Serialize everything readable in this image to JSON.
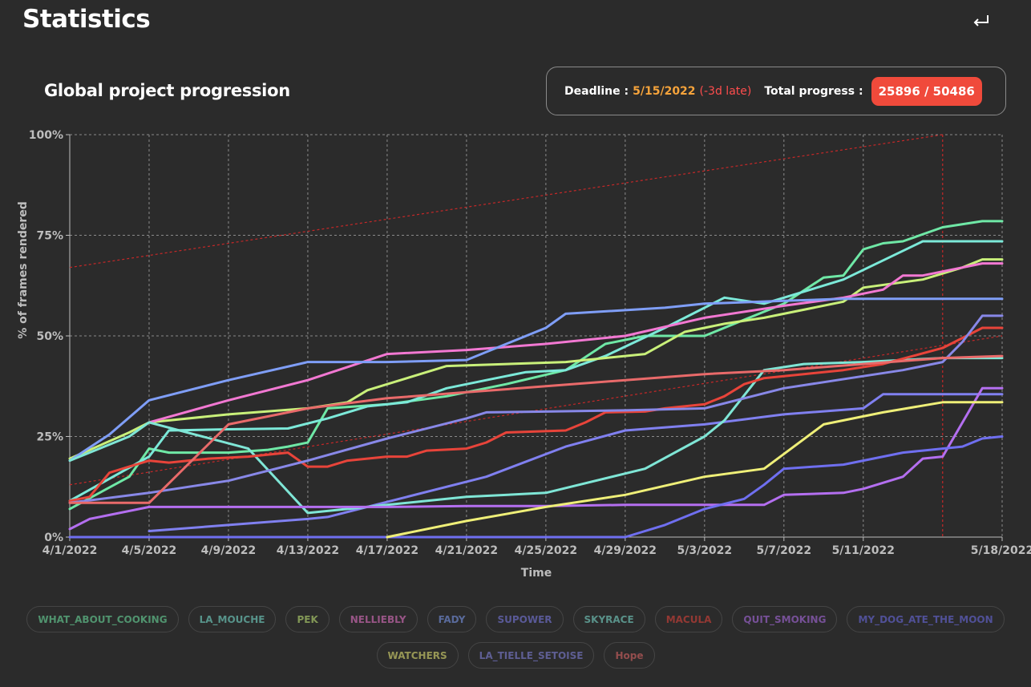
{
  "page": {
    "title": "Statistics",
    "back_icon": "return-arrow-icon"
  },
  "section": {
    "title": "Global project progression",
    "deadline_label": "Deadline :",
    "deadline_date": "5/15/2022",
    "deadline_late": "(-3d late)",
    "total_label": "Total progress :",
    "total_value": "25896 / 50486"
  },
  "colors": {
    "deadline": "#f5a33b",
    "late": "#ff4d4d",
    "badge": "#f04a3b",
    "background": "#2b2b2b"
  },
  "chart_data": {
    "type": "line",
    "xlabel": "Time",
    "ylabel": "% of frames rendered",
    "ylim": [
      0,
      100
    ],
    "yticks": [
      0,
      25,
      50,
      75,
      100
    ],
    "ytick_labels": [
      "0%",
      "25%",
      "50%",
      "75%",
      "100%"
    ],
    "xlim": [
      "2022-04-01",
      "2022-05-18"
    ],
    "xticks": [
      "2022-04-01",
      "2022-04-05",
      "2022-04-09",
      "2022-04-13",
      "2022-04-17",
      "2022-04-21",
      "2022-04-25",
      "2022-04-29",
      "2022-05-03",
      "2022-05-07",
      "2022-05-11",
      "2022-05-18"
    ],
    "xtick_labels": [
      "4/1/2022",
      "4/5/2022",
      "4/9/2022",
      "4/13/2022",
      "4/17/2022",
      "4/21/2022",
      "4/25/2022",
      "4/29/2022",
      "5/3/2022",
      "5/7/2022",
      "5/11/2022",
      "5/18/2022"
    ],
    "grid": true,
    "deadline_line_x": "2022-05-15",
    "reference_lines": [
      {
        "color": "#c62828",
        "points": [
          [
            "2022-04-01",
            67
          ],
          [
            "2022-05-15",
            100
          ]
        ]
      },
      {
        "color": "#c62828",
        "points": [
          [
            "2022-04-01",
            13
          ],
          [
            "2022-05-18",
            50
          ]
        ]
      }
    ],
    "series": [
      {
        "name": "WHAT_ABOUT_COOKING",
        "color": "#6fe8a6",
        "points": [
          [
            "2022-04-01",
            7
          ],
          [
            "2022-04-04",
            15
          ],
          [
            "2022-04-05",
            22
          ],
          [
            "2022-04-06",
            21
          ],
          [
            "2022-04-09",
            21
          ],
          [
            "2022-04-11",
            21.7
          ],
          [
            "2022-04-12",
            22.5
          ],
          [
            "2022-04-13",
            23.5
          ],
          [
            "2022-04-14",
            32
          ],
          [
            "2022-04-17",
            33
          ],
          [
            "2022-04-20",
            35
          ],
          [
            "2022-04-23",
            38
          ],
          [
            "2022-04-26",
            41.5
          ],
          [
            "2022-04-28",
            48
          ],
          [
            "2022-04-30",
            50
          ],
          [
            "2022-05-03",
            50
          ],
          [
            "2022-05-05",
            54
          ],
          [
            "2022-05-07",
            58
          ],
          [
            "2022-05-09",
            64.5
          ],
          [
            "2022-05-10",
            65
          ],
          [
            "2022-05-11",
            71.5
          ],
          [
            "2022-05-12",
            73
          ],
          [
            "2022-05-13",
            73.5
          ],
          [
            "2022-05-15",
            77
          ],
          [
            "2022-05-17",
            78.5
          ],
          [
            "2022-05-18",
            78.5
          ]
        ]
      },
      {
        "name": "LA_MOUCHE",
        "color": "#7ce9d9",
        "points": [
          [
            "2022-04-01",
            9
          ],
          [
            "2022-04-05",
            20
          ],
          [
            "2022-04-06",
            26.5
          ],
          [
            "2022-04-09",
            26.8
          ],
          [
            "2022-04-12",
            27
          ],
          [
            "2022-04-14",
            29.5
          ],
          [
            "2022-04-16",
            32.5
          ],
          [
            "2022-04-18",
            33.5
          ],
          [
            "2022-04-20",
            37
          ],
          [
            "2022-04-22",
            39
          ],
          [
            "2022-04-24",
            41
          ],
          [
            "2022-04-26",
            41.5
          ],
          [
            "2022-04-28",
            45
          ],
          [
            "2022-05-01",
            52
          ],
          [
            "2022-05-04",
            59.5
          ],
          [
            "2022-05-06",
            58
          ],
          [
            "2022-05-08",
            61
          ],
          [
            "2022-05-10",
            64
          ],
          [
            "2022-05-14",
            73.5
          ],
          [
            "2022-05-18",
            73.5
          ]
        ]
      },
      {
        "name": "PEK",
        "color": "#c9f07a",
        "points": [
          [
            "2022-04-01",
            19.5
          ],
          [
            "2022-04-04",
            26
          ],
          [
            "2022-04-05",
            28.5
          ],
          [
            "2022-04-09",
            30.5
          ],
          [
            "2022-04-13",
            32
          ],
          [
            "2022-04-15",
            33.5
          ],
          [
            "2022-04-16",
            36.5
          ],
          [
            "2022-04-18",
            39.5
          ],
          [
            "2022-04-20",
            42.5
          ],
          [
            "2022-04-26",
            43.5
          ],
          [
            "2022-04-30",
            45.5
          ],
          [
            "2022-05-02",
            51
          ],
          [
            "2022-05-04",
            53
          ],
          [
            "2022-05-06",
            54.5
          ],
          [
            "2022-05-10",
            58.5
          ],
          [
            "2022-05-11",
            62
          ],
          [
            "2022-05-14",
            64
          ],
          [
            "2022-05-16",
            67
          ],
          [
            "2022-05-17",
            69
          ],
          [
            "2022-05-18",
            69
          ]
        ]
      },
      {
        "name": "NELLIEBLY",
        "color": "#f278d2",
        "points": [
          [
            "2022-04-05",
            28.5
          ],
          [
            "2022-04-09",
            34
          ],
          [
            "2022-04-13",
            39
          ],
          [
            "2022-04-17",
            45.5
          ],
          [
            "2022-04-21",
            46.5
          ],
          [
            "2022-04-25",
            48
          ],
          [
            "2022-04-29",
            50
          ],
          [
            "2022-05-03",
            54.5
          ],
          [
            "2022-05-07",
            57.5
          ],
          [
            "2022-05-10",
            59.5
          ],
          [
            "2022-05-12",
            61.5
          ],
          [
            "2022-05-13",
            65
          ],
          [
            "2022-05-14",
            65
          ],
          [
            "2022-05-16",
            67
          ],
          [
            "2022-05-17",
            68
          ],
          [
            "2022-05-18",
            68
          ]
        ]
      },
      {
        "name": "FADY",
        "color": "#7f9ef7",
        "points": [
          [
            "2022-04-01",
            19
          ],
          [
            "2022-04-03",
            25.5
          ],
          [
            "2022-04-05",
            34
          ],
          [
            "2022-04-09",
            39
          ],
          [
            "2022-04-13",
            43.5
          ],
          [
            "2022-04-17",
            43.5
          ],
          [
            "2022-04-21",
            44
          ],
          [
            "2022-04-25",
            52
          ],
          [
            "2022-04-26",
            55.5
          ],
          [
            "2022-05-01",
            57
          ],
          [
            "2022-05-03",
            58
          ],
          [
            "2022-05-07",
            58.7
          ],
          [
            "2022-05-10",
            59.2
          ],
          [
            "2022-05-18",
            59.2
          ]
        ]
      },
      {
        "name": "SUPOWER",
        "color": "#8080f0",
        "points": [
          [
            "2022-04-05",
            1.5
          ],
          [
            "2022-04-09",
            3
          ],
          [
            "2022-04-13",
            4.5
          ],
          [
            "2022-04-14",
            5
          ],
          [
            "2022-04-18",
            10
          ],
          [
            "2022-04-22",
            15
          ],
          [
            "2022-04-26",
            22.5
          ],
          [
            "2022-04-29",
            26.5
          ],
          [
            "2022-05-03",
            28
          ],
          [
            "2022-05-07",
            30.5
          ],
          [
            "2022-05-11",
            32
          ],
          [
            "2022-05-12",
            35.5
          ],
          [
            "2022-05-16",
            35.5
          ],
          [
            "2022-05-18",
            35.5
          ]
        ]
      },
      {
        "name": "SKYRACE",
        "color": "#7fe6d6",
        "points": [
          [
            "2022-04-01",
            19
          ],
          [
            "2022-04-04",
            25
          ],
          [
            "2022-04-05",
            28.5
          ],
          [
            "2022-04-10",
            22
          ],
          [
            "2022-04-13",
            6
          ],
          [
            "2022-04-17",
            8
          ],
          [
            "2022-04-21",
            10
          ],
          [
            "2022-04-25",
            11
          ],
          [
            "2022-04-30",
            17
          ],
          [
            "2022-05-03",
            25
          ],
          [
            "2022-05-04",
            29
          ],
          [
            "2022-05-06",
            41.5
          ],
          [
            "2022-05-08",
            43
          ],
          [
            "2022-05-11",
            43.5
          ],
          [
            "2022-05-15",
            44.5
          ],
          [
            "2022-05-18",
            44.5
          ]
        ]
      },
      {
        "name": "MACULA",
        "color": "#e8443a",
        "points": [
          [
            "2022-04-01",
            9
          ],
          [
            "2022-04-02",
            10
          ],
          [
            "2022-04-03",
            16
          ],
          [
            "2022-04-04",
            17.5
          ],
          [
            "2022-04-05",
            19
          ],
          [
            "2022-04-06",
            18.5
          ],
          [
            "2022-04-08",
            19.5
          ],
          [
            "2022-04-10",
            20
          ],
          [
            "2022-04-12",
            21
          ],
          [
            "2022-04-13",
            17.5
          ],
          [
            "2022-04-14",
            17.5
          ],
          [
            "2022-04-15",
            19
          ],
          [
            "2022-04-17",
            20
          ],
          [
            "2022-04-18",
            20
          ],
          [
            "2022-04-19",
            21.5
          ],
          [
            "2022-04-21",
            22
          ],
          [
            "2022-04-22",
            23.5
          ],
          [
            "2022-04-23",
            26
          ],
          [
            "2022-04-26",
            26.5
          ],
          [
            "2022-04-27",
            28.5
          ],
          [
            "2022-04-28",
            31
          ],
          [
            "2022-04-30",
            31.2
          ],
          [
            "2022-05-01",
            32
          ],
          [
            "2022-05-03",
            33
          ],
          [
            "2022-05-04",
            35
          ],
          [
            "2022-05-05",
            38
          ],
          [
            "2022-05-06",
            39.5
          ],
          [
            "2022-05-08",
            40.5
          ],
          [
            "2022-05-10",
            41.5
          ],
          [
            "2022-05-12",
            43
          ],
          [
            "2022-05-15",
            47
          ],
          [
            "2022-05-17",
            52
          ],
          [
            "2022-05-18",
            52
          ]
        ]
      },
      {
        "name": "QUIT_SMOKING",
        "color": "#b46ff0",
        "points": [
          [
            "2022-04-01",
            2
          ],
          [
            "2022-04-02",
            4.5
          ],
          [
            "2022-04-05",
            7.5
          ],
          [
            "2022-04-09",
            7.5
          ],
          [
            "2022-04-13",
            7.5
          ],
          [
            "2022-04-17",
            7.5
          ],
          [
            "2022-04-21",
            7.7
          ],
          [
            "2022-04-25",
            7.7
          ],
          [
            "2022-04-29",
            8
          ],
          [
            "2022-05-03",
            8
          ],
          [
            "2022-05-06",
            8
          ],
          [
            "2022-05-07",
            10.5
          ],
          [
            "2022-05-10",
            11
          ],
          [
            "2022-05-11",
            12
          ],
          [
            "2022-05-13",
            15
          ],
          [
            "2022-05-14",
            19.5
          ],
          [
            "2022-05-15",
            20
          ],
          [
            "2022-05-17",
            37
          ],
          [
            "2022-05-18",
            37
          ]
        ]
      },
      {
        "name": "MY_DOG_ATE_THE_MOON",
        "color": "#6f6ff0",
        "points": [
          [
            "2022-04-01",
            0
          ],
          [
            "2022-04-17",
            0
          ],
          [
            "2022-04-29",
            0
          ],
          [
            "2022-05-01",
            3
          ],
          [
            "2022-05-03",
            7
          ],
          [
            "2022-05-05",
            9.5
          ],
          [
            "2022-05-06",
            13
          ],
          [
            "2022-05-07",
            17
          ],
          [
            "2022-05-10",
            18
          ],
          [
            "2022-05-12",
            20
          ],
          [
            "2022-05-13",
            21
          ],
          [
            "2022-05-14",
            21.5
          ],
          [
            "2022-05-16",
            22.5
          ],
          [
            "2022-05-17",
            24.5
          ],
          [
            "2022-05-18",
            25
          ]
        ]
      },
      {
        "name": "WATCHERS",
        "color": "#efef78",
        "points": [
          [
            "2022-04-17",
            0
          ],
          [
            "2022-04-21",
            4
          ],
          [
            "2022-04-25",
            7.5
          ],
          [
            "2022-04-29",
            10.5
          ],
          [
            "2022-05-03",
            15
          ],
          [
            "2022-05-06",
            17
          ],
          [
            "2022-05-09",
            28
          ],
          [
            "2022-05-12",
            31
          ],
          [
            "2022-05-15",
            33.5
          ],
          [
            "2022-05-18",
            33.5
          ]
        ]
      },
      {
        "name": "LA_TIELLE_SETOISE",
        "color": "#8888e8",
        "points": [
          [
            "2022-04-01",
            8.5
          ],
          [
            "2022-04-05",
            11
          ],
          [
            "2022-04-09",
            14
          ],
          [
            "2022-04-13",
            19
          ],
          [
            "2022-04-17",
            24.5
          ],
          [
            "2022-04-21",
            29.5
          ],
          [
            "2022-04-22",
            31
          ],
          [
            "2022-04-25",
            31.2
          ],
          [
            "2022-04-29",
            31.5
          ],
          [
            "2022-05-03",
            32
          ],
          [
            "2022-05-07",
            37
          ],
          [
            "2022-05-11",
            40
          ],
          [
            "2022-05-13",
            41.5
          ],
          [
            "2022-05-15",
            43.5
          ],
          [
            "2022-05-16",
            48.5
          ],
          [
            "2022-05-17",
            55
          ],
          [
            "2022-05-18",
            55
          ]
        ]
      },
      {
        "name": "Hope",
        "color": "#e96a6a",
        "points": [
          [
            "2022-04-01",
            8.5
          ],
          [
            "2022-04-05",
            8.5
          ],
          [
            "2022-04-09",
            28
          ],
          [
            "2022-04-13",
            32
          ],
          [
            "2022-04-17",
            34.5
          ],
          [
            "2022-04-21",
            36
          ],
          [
            "2022-04-25",
            37.5
          ],
          [
            "2022-04-29",
            39
          ],
          [
            "2022-05-03",
            40.5
          ],
          [
            "2022-05-07",
            41.5
          ],
          [
            "2022-05-11",
            43
          ],
          [
            "2022-05-15",
            44.5
          ],
          [
            "2022-05-18",
            45
          ]
        ]
      }
    ]
  }
}
